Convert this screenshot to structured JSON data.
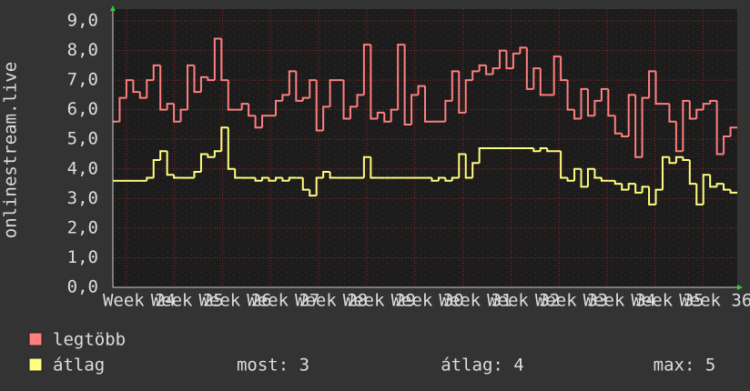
{
  "chart_data": {
    "type": "line",
    "ylabel": "onlinestream.live",
    "ylim": [
      0,
      9.4
    ],
    "yticks": [
      {
        "value": 0,
        "label": "0,0"
      },
      {
        "value": 1,
        "label": "1,0"
      },
      {
        "value": 2,
        "label": "2,0"
      },
      {
        "value": 3,
        "label": "3,0"
      },
      {
        "value": 4,
        "label": "4,0"
      },
      {
        "value": 5,
        "label": "5,0"
      },
      {
        "value": 6,
        "label": "6,0"
      },
      {
        "value": 7,
        "label": "7,0"
      },
      {
        "value": 8,
        "label": "8,0"
      },
      {
        "value": 9,
        "label": "9,0"
      }
    ],
    "x_labels": [
      "Week 24",
      "Week 25",
      "Week 26",
      "Week 27",
      "Week 28",
      "Week 29",
      "Week 30",
      "Week 31",
      "Week 32",
      "Week 33",
      "Week 34",
      "Week 35",
      "Week 36"
    ],
    "grid": true,
    "series": [
      {
        "name": "legtöbb",
        "color": "#ff7f7f",
        "values": [
          5.6,
          6.4,
          7.0,
          6.6,
          6.4,
          7.0,
          7.5,
          6.0,
          6.2,
          5.6,
          6.0,
          7.5,
          6.6,
          7.1,
          7.0,
          8.4,
          7.0,
          6.0,
          6.0,
          6.2,
          5.8,
          5.4,
          5.8,
          5.8,
          6.3,
          6.5,
          7.3,
          6.3,
          6.4,
          7.0,
          5.3,
          6.1,
          7.0,
          7.0,
          5.7,
          6.1,
          6.5,
          8.2,
          5.7,
          5.9,
          5.6,
          6.0,
          8.2,
          5.5,
          6.5,
          6.8,
          5.6,
          5.6,
          5.6,
          6.3,
          7.3,
          5.9,
          7.0,
          7.3,
          7.5,
          7.2,
          7.4,
          8.0,
          7.4,
          7.9,
          8.1,
          6.7,
          7.4,
          6.5,
          6.5,
          7.8,
          7.0,
          6.0,
          5.7,
          6.7,
          5.8,
          6.3,
          6.7,
          5.8,
          5.2,
          5.1,
          6.5,
          4.4,
          6.4,
          7.3,
          6.2,
          6.2,
          5.6,
          4.6,
          6.3,
          5.7,
          6.0,
          6.2,
          6.3,
          4.5,
          5.1,
          5.4
        ]
      },
      {
        "name": "átlag",
        "color": "#ffff7f",
        "values": [
          3.6,
          3.6,
          3.6,
          3.6,
          3.6,
          3.7,
          4.3,
          4.6,
          3.8,
          3.7,
          3.7,
          3.7,
          3.9,
          4.5,
          4.4,
          4.6,
          5.4,
          4.0,
          3.7,
          3.7,
          3.7,
          3.6,
          3.7,
          3.6,
          3.7,
          3.6,
          3.7,
          3.7,
          3.3,
          3.1,
          3.7,
          3.9,
          3.7,
          3.7,
          3.7,
          3.7,
          3.7,
          4.4,
          3.7,
          3.7,
          3.7,
          3.7,
          3.7,
          3.7,
          3.7,
          3.7,
          3.7,
          3.6,
          3.7,
          3.6,
          3.7,
          4.5,
          3.7,
          4.2,
          4.7,
          4.7,
          4.7,
          4.7,
          4.7,
          4.7,
          4.7,
          4.7,
          4.6,
          4.7,
          4.6,
          4.6,
          3.7,
          3.6,
          4.0,
          3.4,
          4.0,
          3.7,
          3.6,
          3.6,
          3.5,
          3.3,
          3.5,
          3.2,
          3.4,
          2.8,
          3.3,
          4.4,
          4.2,
          4.4,
          4.3,
          3.5,
          2.8,
          3.8,
          3.4,
          3.5,
          3.3,
          3.2
        ]
      }
    ],
    "stats": [
      "most: 3",
      "átlag: 4",
      "max: 5"
    ]
  }
}
